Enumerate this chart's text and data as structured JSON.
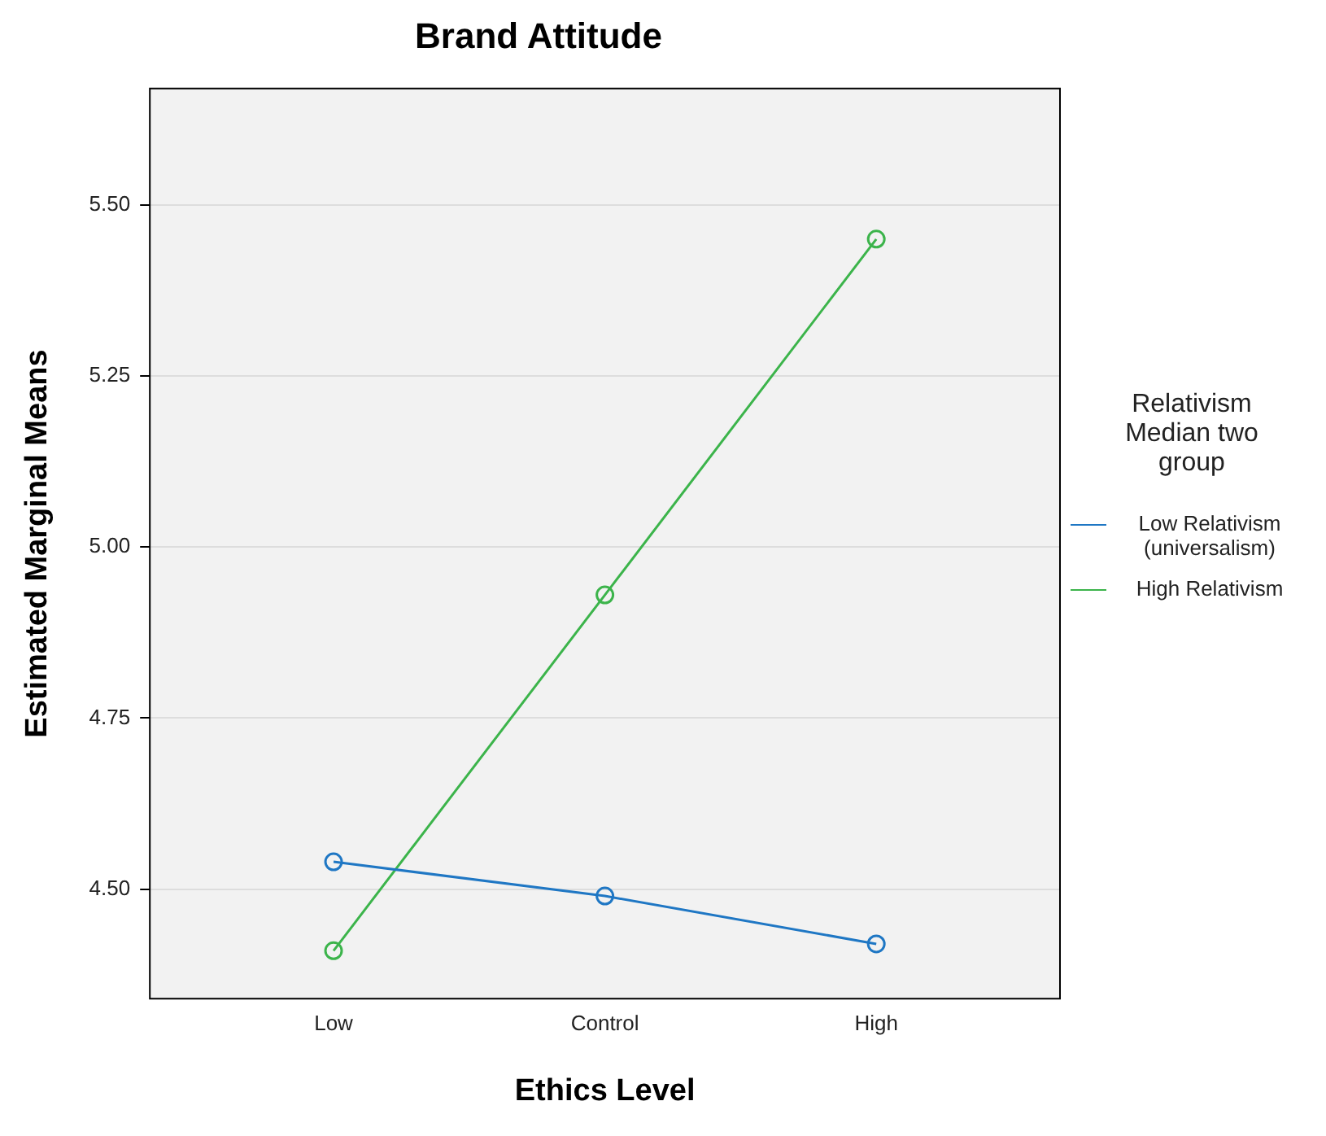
{
  "chart_data": {
    "type": "line",
    "title": "Brand Attitude",
    "xlabel": "Ethics Level",
    "ylabel": "Estimated Marginal Means",
    "legend_title": "Relativism Median two group",
    "categories": [
      "Low",
      "Control",
      "High"
    ],
    "series": [
      {
        "name": "Low Relativism (universalism)",
        "color": "#1f77c4",
        "values": [
          4.54,
          4.49,
          4.42
        ]
      },
      {
        "name": "High Relativism",
        "color": "#3cb44b",
        "values": [
          4.41,
          4.93,
          5.45
        ]
      }
    ],
    "ylim": [
      4.34,
      5.67
    ],
    "yticks": [
      {
        "value": 4.5,
        "label": "4.50"
      },
      {
        "value": 4.75,
        "label": "4.75"
      },
      {
        "value": 5,
        "label": "5.00"
      },
      {
        "value": 5.25,
        "label": "5.25"
      },
      {
        "value": 5.5,
        "label": "5.50"
      }
    ],
    "grid": "y",
    "legend": "right",
    "marker": "circle",
    "line_style": "solid"
  }
}
